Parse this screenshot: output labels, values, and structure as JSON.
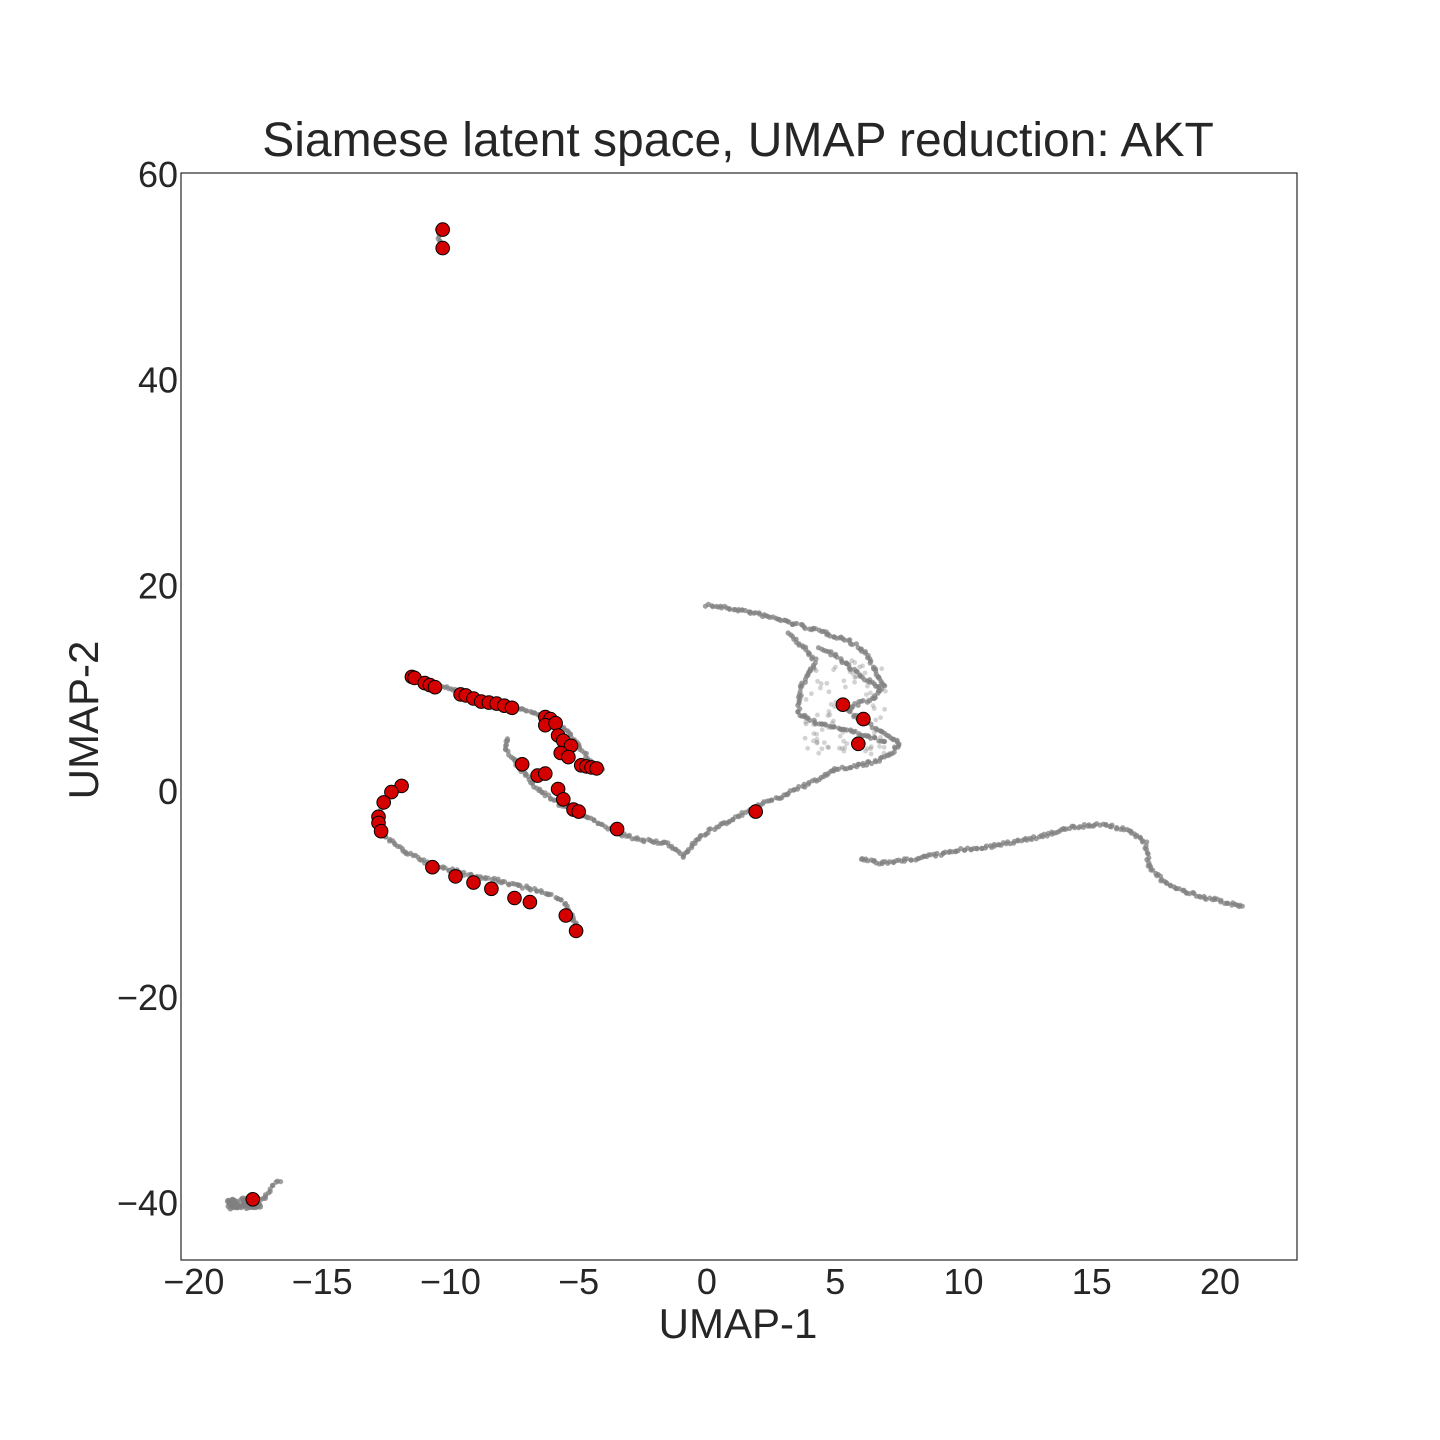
{
  "chart_data": {
    "type": "scatter",
    "title": "Siamese latent space, UMAP reduction: AKT",
    "xlabel": "UMAP-1",
    "ylabel": "UMAP-2",
    "xlim": [
      -20.5,
      23
    ],
    "ylim": [
      -45.5,
      60.2
    ],
    "xticks": [
      -20,
      -15,
      -10,
      -5,
      0,
      5,
      10,
      15,
      20
    ],
    "yticks": [
      -40,
      -20,
      0,
      20,
      40,
      60
    ],
    "xtick_labels": [
      "−20",
      "−15",
      "−10",
      "−5",
      "0",
      "5",
      "10",
      "15",
      "20"
    ],
    "ytick_labels": [
      "−40",
      "−20",
      "0",
      "20",
      "40",
      "60"
    ],
    "grid": false,
    "colors": {
      "background_points": "#808080",
      "highlight_points": "#d40000",
      "highlight_edge": "#000000"
    },
    "series": [
      {
        "role": "background",
        "paths": [
          [
            [
              0.0,
              18.2
            ],
            [
              1.5,
              17.6
            ],
            [
              2.8,
              16.8
            ],
            [
              4.2,
              15.8
            ],
            [
              5.5,
              14.8
            ],
            [
              6.2,
              13.5
            ],
            [
              6.6,
              11.5
            ],
            [
              6.9,
              10.2
            ],
            [
              6.4,
              9.0
            ],
            [
              5.8,
              8.5
            ],
            [
              5.5,
              8.0
            ],
            [
              5.9,
              7.2
            ],
            [
              6.4,
              6.5
            ],
            [
              7.0,
              5.6
            ],
            [
              7.5,
              4.8
            ],
            [
              7.2,
              3.8
            ],
            [
              6.6,
              3.0
            ],
            [
              5.8,
              2.5
            ],
            [
              5.0,
              2.2
            ],
            [
              4.5,
              1.5
            ],
            [
              4.0,
              0.9
            ],
            [
              3.3,
              0.0
            ],
            [
              2.5,
              -0.8
            ],
            [
              1.5,
              -2.0
            ],
            [
              0.5,
              -3.2
            ],
            [
              -0.2,
              -4.2
            ],
            [
              -0.6,
              -5.2
            ],
            [
              -0.9,
              -6.3
            ],
            [
              -1.5,
              -5.0
            ],
            [
              -2.5,
              -4.7
            ],
            [
              -3.5,
              -4.0
            ],
            [
              -4.5,
              -2.6
            ],
            [
              -5.5,
              -1.5
            ],
            [
              -6.0,
              -0.8
            ],
            [
              -6.6,
              0.3
            ],
            [
              -7.2,
              2.0
            ],
            [
              -7.8,
              4.0
            ],
            [
              -7.8,
              5.5
            ]
          ],
          [
            [
              3.2,
              15.4
            ],
            [
              3.8,
              14.0
            ],
            [
              4.2,
              12.8
            ],
            [
              4.0,
              11.5
            ],
            [
              3.7,
              10.4
            ],
            [
              3.6,
              9.0
            ],
            [
              3.6,
              7.5
            ],
            [
              4.2,
              6.8
            ],
            [
              5.0,
              6.3
            ],
            [
              5.6,
              6.0
            ],
            [
              6.2,
              5.4
            ],
            [
              7.0,
              4.9
            ]
          ],
          [
            [
              4.4,
              14.0
            ],
            [
              5.2,
              13.0
            ],
            [
              5.7,
              11.8
            ],
            [
              6.3,
              10.8
            ],
            [
              6.8,
              10.0
            ]
          ],
          [
            [
              -11.6,
              11.2
            ],
            [
              -10.5,
              10.5
            ],
            [
              -9.5,
              9.6
            ],
            [
              -8.5,
              9.0
            ],
            [
              -7.5,
              8.3
            ],
            [
              -6.5,
              7.6
            ],
            [
              -5.8,
              6.6
            ],
            [
              -5.2,
              5.2
            ],
            [
              -4.8,
              3.8
            ],
            [
              -4.3,
              2.3
            ],
            [
              -4.0,
              2.0
            ]
          ],
          [
            [
              -11.8,
              0.6
            ],
            [
              -12.4,
              -0.5
            ],
            [
              -12.9,
              -2.3
            ],
            [
              -12.8,
              -3.8
            ],
            [
              -12.0,
              -5.4
            ],
            [
              -11.0,
              -6.8
            ],
            [
              -9.5,
              -7.9
            ],
            [
              -8.0,
              -8.7
            ],
            [
              -6.5,
              -9.6
            ],
            [
              -5.7,
              -10.4
            ],
            [
              -5.3,
              -11.8
            ],
            [
              -5.0,
              -13.5
            ]
          ],
          [
            [
              6.0,
              -6.5
            ],
            [
              6.8,
              -6.9
            ],
            [
              7.5,
              -6.7
            ],
            [
              8.5,
              -6.3
            ],
            [
              10.0,
              -5.6
            ],
            [
              11.5,
              -5.1
            ],
            [
              13.0,
              -4.3
            ],
            [
              14.2,
              -3.4
            ],
            [
              15.5,
              -3.1
            ],
            [
              16.5,
              -3.8
            ],
            [
              17.1,
              -5.0
            ],
            [
              17.2,
              -7.0
            ],
            [
              17.8,
              -8.7
            ],
            [
              18.5,
              -9.6
            ],
            [
              19.5,
              -10.3
            ],
            [
              21.0,
              -11.2
            ]
          ],
          [
            [
              -18.6,
              -40.0
            ],
            [
              -18.2,
              -40.2
            ],
            [
              -17.7,
              -40.0
            ],
            [
              -17.2,
              -39.3
            ],
            [
              -16.9,
              -38.2
            ],
            [
              -16.6,
              -37.6
            ]
          ],
          [
            [
              -10.5,
              54.8
            ],
            [
              -10.4,
              53.0
            ]
          ]
        ]
      },
      {
        "role": "highlight",
        "points": [
          [
            -10.3,
            54.7
          ],
          [
            -10.3,
            52.9
          ],
          [
            -11.5,
            11.2
          ],
          [
            -11.4,
            11.1
          ],
          [
            -11.0,
            10.6
          ],
          [
            -10.8,
            10.4
          ],
          [
            -10.6,
            10.2
          ],
          [
            -9.6,
            9.5
          ],
          [
            -9.4,
            9.4
          ],
          [
            -9.1,
            9.1
          ],
          [
            -8.8,
            8.8
          ],
          [
            -8.5,
            8.7
          ],
          [
            -8.2,
            8.6
          ],
          [
            -7.9,
            8.4
          ],
          [
            -7.6,
            8.2
          ],
          [
            -6.3,
            7.3
          ],
          [
            -6.1,
            7.1
          ],
          [
            -6.3,
            6.5
          ],
          [
            -5.9,
            6.7
          ],
          [
            -5.8,
            5.5
          ],
          [
            -5.6,
            5.0
          ],
          [
            -5.3,
            4.5
          ],
          [
            -5.7,
            3.8
          ],
          [
            -5.4,
            3.4
          ],
          [
            -4.9,
            2.6
          ],
          [
            -4.7,
            2.5
          ],
          [
            -4.5,
            2.4
          ],
          [
            -4.3,
            2.3
          ],
          [
            -7.2,
            2.7
          ],
          [
            -6.6,
            1.6
          ],
          [
            -6.3,
            1.8
          ],
          [
            -5.8,
            0.3
          ],
          [
            -5.6,
            -0.7
          ],
          [
            -5.2,
            -1.7
          ],
          [
            -5.0,
            -1.9
          ],
          [
            -3.5,
            -3.6
          ],
          [
            -11.9,
            0.6
          ],
          [
            -12.3,
            0.0
          ],
          [
            -12.6,
            -1.0
          ],
          [
            -12.8,
            -2.4
          ],
          [
            -12.8,
            -3.0
          ],
          [
            -12.7,
            -3.8
          ],
          [
            -10.7,
            -7.3
          ],
          [
            -9.8,
            -8.2
          ],
          [
            -9.1,
            -8.8
          ],
          [
            -8.4,
            -9.4
          ],
          [
            -7.5,
            -10.3
          ],
          [
            -6.9,
            -10.7
          ],
          [
            -5.5,
            -12.0
          ],
          [
            -5.1,
            -13.5
          ],
          [
            1.9,
            -1.9
          ],
          [
            5.3,
            8.5
          ],
          [
            6.1,
            7.1
          ],
          [
            5.9,
            4.7
          ],
          [
            -17.7,
            -39.6
          ]
        ]
      }
    ]
  }
}
